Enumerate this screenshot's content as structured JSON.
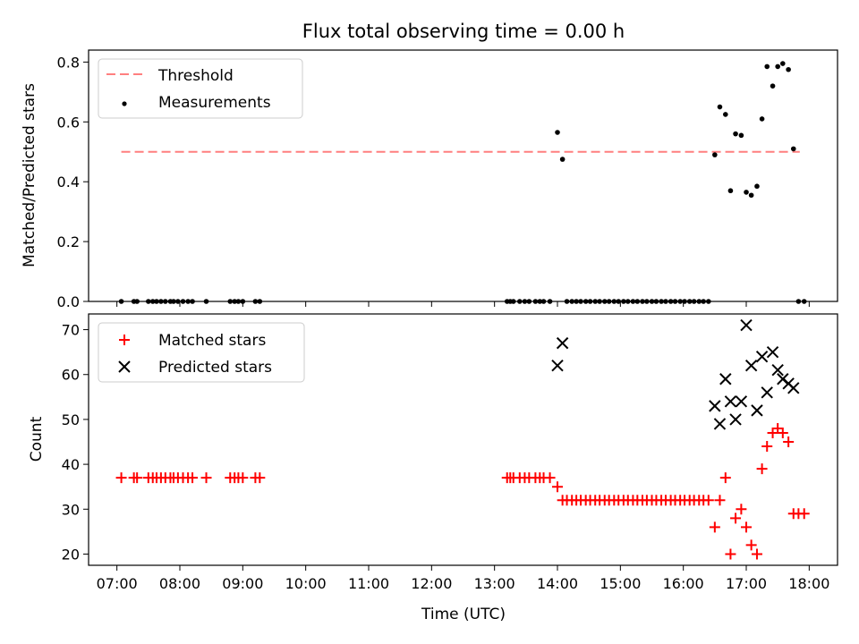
{
  "title": "Flux total observing time = 0.00 h",
  "x_ticks": [
    "07:00",
    "08:00",
    "09:00",
    "10:00",
    "11:00",
    "12:00",
    "13:00",
    "14:00",
    "15:00",
    "16:00",
    "17:00",
    "18:00"
  ],
  "x_tick_hours": [
    7,
    8,
    9,
    10,
    11,
    12,
    13,
    14,
    15,
    16,
    17,
    18
  ],
  "xlabel": "Time (UTC)",
  "xlim": [
    6.55,
    18.45
  ],
  "chart_data": [
    {
      "type": "scatter",
      "panel": "top",
      "ylabel": "Matched/Predicted stars",
      "ylim": [
        0,
        0.84
      ],
      "y_ticks": [
        0.0,
        0.2,
        0.4,
        0.6,
        0.8
      ],
      "y_tick_labels": [
        "0.0",
        "0.2",
        "0.4",
        "0.6",
        "0.8"
      ],
      "legend_position": "top-left",
      "threshold": {
        "name": "Threshold",
        "y": 0.5,
        "x_range": [
          7.07,
          17.85
        ],
        "color": "#ff7f7f"
      },
      "series": [
        {
          "name": "Measurements",
          "color": "#000000",
          "points": [
            [
              7.07,
              0
            ],
            [
              7.27,
              0
            ],
            [
              7.32,
              0
            ],
            [
              7.5,
              0
            ],
            [
              7.57,
              0
            ],
            [
              7.63,
              0
            ],
            [
              7.7,
              0
            ],
            [
              7.77,
              0
            ],
            [
              7.85,
              0
            ],
            [
              7.9,
              0
            ],
            [
              7.97,
              0
            ],
            [
              8.05,
              0
            ],
            [
              8.13,
              0
            ],
            [
              8.2,
              0
            ],
            [
              8.42,
              0
            ],
            [
              8.8,
              0
            ],
            [
              8.87,
              0
            ],
            [
              8.93,
              0
            ],
            [
              9.0,
              0
            ],
            [
              9.2,
              0
            ],
            [
              9.27,
              0
            ],
            [
              13.2,
              0
            ],
            [
              13.25,
              0
            ],
            [
              13.3,
              0
            ],
            [
              13.4,
              0
            ],
            [
              13.48,
              0
            ],
            [
              13.55,
              0
            ],
            [
              13.65,
              0
            ],
            [
              13.72,
              0
            ],
            [
              13.78,
              0
            ],
            [
              13.88,
              0
            ],
            [
              14.0,
              0.565
            ],
            [
              14.08,
              0.475
            ],
            [
              14.15,
              0
            ],
            [
              14.23,
              0
            ],
            [
              14.3,
              0
            ],
            [
              14.37,
              0
            ],
            [
              14.45,
              0
            ],
            [
              14.52,
              0
            ],
            [
              14.6,
              0
            ],
            [
              14.67,
              0
            ],
            [
              14.75,
              0
            ],
            [
              14.82,
              0
            ],
            [
              14.9,
              0
            ],
            [
              14.97,
              0
            ],
            [
              15.05,
              0
            ],
            [
              15.12,
              0
            ],
            [
              15.2,
              0
            ],
            [
              15.27,
              0
            ],
            [
              15.35,
              0
            ],
            [
              15.42,
              0
            ],
            [
              15.5,
              0
            ],
            [
              15.57,
              0
            ],
            [
              15.65,
              0
            ],
            [
              15.72,
              0
            ],
            [
              15.8,
              0
            ],
            [
              15.87,
              0
            ],
            [
              15.95,
              0
            ],
            [
              16.02,
              0
            ],
            [
              16.1,
              0
            ],
            [
              16.17,
              0
            ],
            [
              16.25,
              0
            ],
            [
              16.32,
              0
            ],
            [
              16.4,
              0
            ],
            [
              16.5,
              0.49
            ],
            [
              16.58,
              0.65
            ],
            [
              16.67,
              0.625
            ],
            [
              16.75,
              0.37
            ],
            [
              16.83,
              0.56
            ],
            [
              16.92,
              0.555
            ],
            [
              17.0,
              0.365
            ],
            [
              17.08,
              0.355
            ],
            [
              17.17,
              0.385
            ],
            [
              17.25,
              0.61
            ],
            [
              17.33,
              0.785
            ],
            [
              17.42,
              0.72
            ],
            [
              17.5,
              0.785
            ],
            [
              17.58,
              0.795
            ],
            [
              17.67,
              0.775
            ],
            [
              17.75,
              0.51
            ],
            [
              17.83,
              0
            ],
            [
              17.92,
              0
            ]
          ]
        }
      ]
    },
    {
      "type": "scatter",
      "panel": "bottom",
      "ylabel": "Count",
      "ylim": [
        17.5,
        73.5
      ],
      "y_ticks": [
        20,
        30,
        40,
        50,
        60,
        70
      ],
      "y_tick_labels": [
        "20",
        "30",
        "40",
        "50",
        "60",
        "70"
      ],
      "legend_position": "top-left",
      "series": [
        {
          "name": "Matched stars",
          "marker": "plus",
          "color": "#ff0000",
          "points": [
            [
              7.07,
              37
            ],
            [
              7.27,
              37
            ],
            [
              7.32,
              37
            ],
            [
              7.5,
              37
            ],
            [
              7.57,
              37
            ],
            [
              7.63,
              37
            ],
            [
              7.7,
              37
            ],
            [
              7.77,
              37
            ],
            [
              7.85,
              37
            ],
            [
              7.9,
              37
            ],
            [
              7.97,
              37
            ],
            [
              8.05,
              37
            ],
            [
              8.13,
              37
            ],
            [
              8.2,
              37
            ],
            [
              8.42,
              37
            ],
            [
              8.8,
              37
            ],
            [
              8.87,
              37
            ],
            [
              8.93,
              37
            ],
            [
              9.0,
              37
            ],
            [
              9.2,
              37
            ],
            [
              9.27,
              37
            ],
            [
              13.2,
              37
            ],
            [
              13.25,
              37
            ],
            [
              13.3,
              37
            ],
            [
              13.4,
              37
            ],
            [
              13.48,
              37
            ],
            [
              13.55,
              37
            ],
            [
              13.65,
              37
            ],
            [
              13.72,
              37
            ],
            [
              13.78,
              37
            ],
            [
              13.88,
              37
            ],
            [
              14.0,
              35
            ],
            [
              14.08,
              32
            ],
            [
              14.15,
              32
            ],
            [
              14.23,
              32
            ],
            [
              14.3,
              32
            ],
            [
              14.37,
              32
            ],
            [
              14.45,
              32
            ],
            [
              14.52,
              32
            ],
            [
              14.6,
              32
            ],
            [
              14.67,
              32
            ],
            [
              14.75,
              32
            ],
            [
              14.82,
              32
            ],
            [
              14.9,
              32
            ],
            [
              14.97,
              32
            ],
            [
              15.05,
              32
            ],
            [
              15.12,
              32
            ],
            [
              15.2,
              32
            ],
            [
              15.27,
              32
            ],
            [
              15.35,
              32
            ],
            [
              15.42,
              32
            ],
            [
              15.5,
              32
            ],
            [
              15.57,
              32
            ],
            [
              15.65,
              32
            ],
            [
              15.72,
              32
            ],
            [
              15.8,
              32
            ],
            [
              15.87,
              32
            ],
            [
              15.95,
              32
            ],
            [
              16.02,
              32
            ],
            [
              16.1,
              32
            ],
            [
              16.17,
              32
            ],
            [
              16.25,
              32
            ],
            [
              16.32,
              32
            ],
            [
              16.4,
              32
            ],
            [
              16.5,
              26
            ],
            [
              16.58,
              32
            ],
            [
              16.67,
              37
            ],
            [
              16.75,
              20
            ],
            [
              16.83,
              28
            ],
            [
              16.92,
              30
            ],
            [
              17.0,
              26
            ],
            [
              17.08,
              22
            ],
            [
              17.17,
              20
            ],
            [
              17.25,
              39
            ],
            [
              17.33,
              44
            ],
            [
              17.42,
              47
            ],
            [
              17.5,
              48
            ],
            [
              17.58,
              47
            ],
            [
              17.67,
              45
            ],
            [
              17.75,
              29
            ],
            [
              17.83,
              29
            ],
            [
              17.92,
              29
            ]
          ]
        },
        {
          "name": "Predicted stars",
          "marker": "x",
          "color": "#000000",
          "points": [
            [
              14.0,
              62
            ],
            [
              14.08,
              67
            ],
            [
              16.5,
              53
            ],
            [
              16.58,
              49
            ],
            [
              16.67,
              59
            ],
            [
              16.75,
              54
            ],
            [
              16.83,
              50
            ],
            [
              16.92,
              54
            ],
            [
              17.0,
              71
            ],
            [
              17.08,
              62
            ],
            [
              17.17,
              52
            ],
            [
              17.25,
              64
            ],
            [
              17.33,
              56
            ],
            [
              17.42,
              65
            ],
            [
              17.5,
              61
            ],
            [
              17.58,
              59
            ],
            [
              17.67,
              58
            ],
            [
              17.75,
              57
            ]
          ]
        }
      ]
    }
  ]
}
